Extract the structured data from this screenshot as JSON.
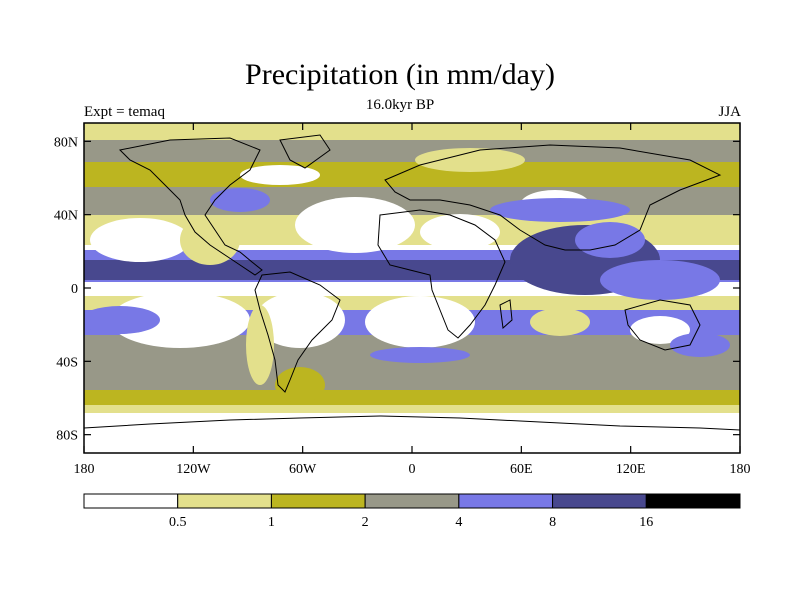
{
  "title": "Precipitation (in mm/day)",
  "subtitle": "16.0kyr BP",
  "left_label": "Expt = temaq",
  "right_label": "JJA",
  "map": {
    "projection": "cylindrical-equidistant",
    "lon_range": [
      -180,
      180
    ],
    "lat_range": [
      -90,
      90
    ],
    "lat_ticks": [
      {
        "value": 80,
        "label": "80N"
      },
      {
        "value": 40,
        "label": "40N"
      },
      {
        "value": 0,
        "label": "0"
      },
      {
        "value": -40,
        "label": "40S"
      },
      {
        "value": -80,
        "label": "80S"
      }
    ],
    "lon_ticks": [
      {
        "value": -180,
        "label": "180"
      },
      {
        "value": -120,
        "label": "120W"
      },
      {
        "value": -60,
        "label": "60W"
      },
      {
        "value": 0,
        "label": "0"
      },
      {
        "value": 60,
        "label": "60E"
      },
      {
        "value": 120,
        "label": "120E"
      },
      {
        "value": 180,
        "label": "180"
      }
    ]
  },
  "colorbar": {
    "bins": [
      {
        "color": "#ffffff"
      },
      {
        "color": "#e3e08c"
      },
      {
        "color": "#bcb520"
      },
      {
        "color": "#989888"
      },
      {
        "color": "#7878e6"
      },
      {
        "color": "#48488e"
      },
      {
        "color": "#000000"
      }
    ],
    "labels": [
      "0.5",
      "1",
      "2",
      "4",
      "8",
      "16"
    ]
  }
}
